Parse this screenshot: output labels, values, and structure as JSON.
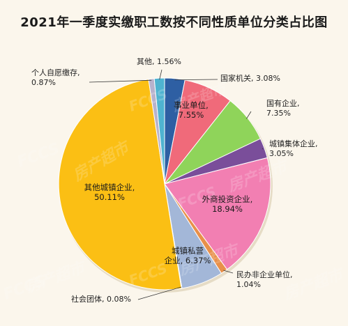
{
  "chart_data": {
    "type": "pie",
    "title": "2021年一季度实缴职工数按不同性质单位分类占比图",
    "watermarks": [
      "FCCS",
      "房产超市"
    ],
    "slices": [
      {
        "name_lines": [
          "国家机关, 3.08%"
        ],
        "value": 3.08,
        "color": "#2e5fa3"
      },
      {
        "name_lines": [
          "事业单位,",
          "7.55%"
        ],
        "value": 7.55,
        "color": "#f06a7a"
      },
      {
        "name_lines": [
          "国有企业,",
          "7.35%"
        ],
        "value": 7.35,
        "color": "#8fd45a"
      },
      {
        "name_lines": [
          "城镇集体企业,",
          "3.05%"
        ],
        "value": 3.05,
        "color": "#7a4e9a"
      },
      {
        "name_lines": [
          "外商投资企业,",
          "18.94%"
        ],
        "value": 18.94,
        "color": "#f27fb2"
      },
      {
        "name_lines": [
          "民办非企业单位,",
          "1.04%"
        ],
        "value": 1.04,
        "color": "#e8904a"
      },
      {
        "name_lines": [
          "城镇私营",
          "企业, 6.37%"
        ],
        "value": 6.37,
        "color": "#a3b7d8"
      },
      {
        "name_lines": [
          "社会团体, 0.08%"
        ],
        "value": 0.08,
        "color": "#c7d3e6"
      },
      {
        "name_lines": [
          "其他城镇企业,",
          "50.11%"
        ],
        "value": 50.11,
        "color": "#fbbf14"
      },
      {
        "name_lines": [
          "个人自愿缴存,",
          "0.87%"
        ],
        "value": 0.87,
        "color": "#b8b2cc"
      },
      {
        "name_lines": [
          "其他, 1.56%"
        ],
        "value": 1.56,
        "color": "#4fb3d0"
      }
    ]
  }
}
